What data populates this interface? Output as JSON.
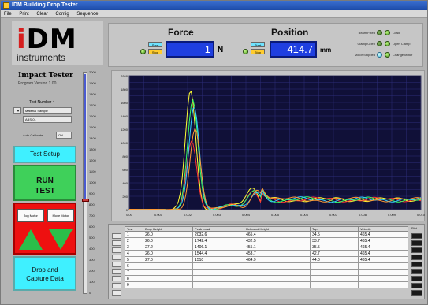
{
  "window": {
    "title": "IDM Building Drop Tester",
    "menu": [
      "File",
      "Print",
      "Clear",
      "Config",
      "Sequence"
    ]
  },
  "logo": {
    "main_i": "i",
    "main_rest": "DM",
    "sub": "instruments"
  },
  "header": {
    "force": {
      "title": "Force",
      "value": "1",
      "unit": "N",
      "btn_top": "Start",
      "btn_bottom": "Stop"
    },
    "position": {
      "title": "Position",
      "value": "414.7",
      "unit": "mm",
      "btn_top": "Start",
      "btn_bottom": "Stop"
    },
    "status": [
      {
        "label": "Beam Fixed",
        "state": "on",
        "right_label": "Load"
      },
      {
        "label": "Clamp Open",
        "state": "on",
        "right_label": "Open Clamp"
      },
      {
        "label": "Motor Stopped",
        "state": "cyan",
        "right_label": "Change Motor"
      }
    ]
  },
  "left": {
    "title": "Impact Tester",
    "version": "Program Version 1.00",
    "test_number_label": "Test Number",
    "test_number": "4",
    "material_select": "Material Sample",
    "sample_field": "ABS-01",
    "auto_calibrate_label": "Auto Calibrate",
    "auto_calibrate_value": "ON",
    "test_setup": "Test Setup",
    "run_test_l1": "RUN",
    "run_test_l2": "TEST",
    "jog_up": "Jog Motor",
    "move_down": "Move Motor",
    "capture_l1": "Drop and",
    "capture_l2": "Capture Data"
  },
  "scale": {
    "ticks": [
      "2000",
      "1900",
      "1800",
      "1700",
      "1600",
      "1500",
      "1400",
      "1300",
      "1200",
      "1100",
      "1000",
      "900",
      "800",
      "700",
      "600",
      "500",
      "400",
      "300",
      "200",
      "100",
      "0"
    ]
  },
  "chart_data": {
    "type": "line",
    "ylim": [
      0,
      2000
    ],
    "xlim": [
      0,
      0.02
    ],
    "xticks": [
      "0.00",
      "0.001",
      "0.002",
      "0.003",
      "0.004",
      "0.005",
      "0.006",
      "0.007",
      "0.008",
      "0.009",
      "0.010"
    ],
    "yticks": [
      "2000",
      "1800",
      "1600",
      "1400",
      "1200",
      "1000",
      "800",
      "600",
      "400",
      "200",
      "0"
    ],
    "grid": true,
    "background": "#101038",
    "series": [
      {
        "color": "#ffff33",
        "peak": 1780,
        "second": 320
      },
      {
        "color": "#ff3333",
        "peak": 1010,
        "second": 260
      },
      {
        "color": "#33ff66",
        "peak": 1650,
        "second": 300
      },
      {
        "color": "#33ccff",
        "peak": 1540,
        "second": 250
      },
      {
        "color": "#ff9933",
        "peak": 1200,
        "second": 280
      }
    ]
  },
  "table": {
    "headers": [
      "Test",
      "Drop Height",
      "Peak Load",
      "Rebound Height",
      "Tap",
      "Velocity",
      "Plot"
    ],
    "rows": [
      [
        "1",
        "26.0",
        "2032.6",
        "465.4",
        "34.5",
        "465.4"
      ],
      [
        "2",
        "26.0",
        "1742.4",
        "432.5",
        "33.7",
        "465.4"
      ],
      [
        "3",
        "27.2",
        "1406.1",
        "455.1",
        "35.5",
        "465.4"
      ],
      [
        "4",
        "26.0",
        "1544.4",
        "453.7",
        "42.7",
        "465.4"
      ],
      [
        "5",
        "27.0",
        "1510",
        "464.9",
        "44.0",
        "465.4"
      ],
      [
        "6",
        "",
        "",
        "",
        "",
        ""
      ],
      [
        "7",
        "",
        "",
        "",
        "",
        ""
      ],
      [
        "8",
        "",
        "",
        "",
        "",
        ""
      ],
      [
        "9",
        "",
        "",
        "",
        "",
        ""
      ]
    ]
  },
  "colors": {
    "accent_blue": "#1f3fe0",
    "run_green": "#3fd05a",
    "cyan_button": "#3ff0ff",
    "jog_red": "#ee1010"
  }
}
